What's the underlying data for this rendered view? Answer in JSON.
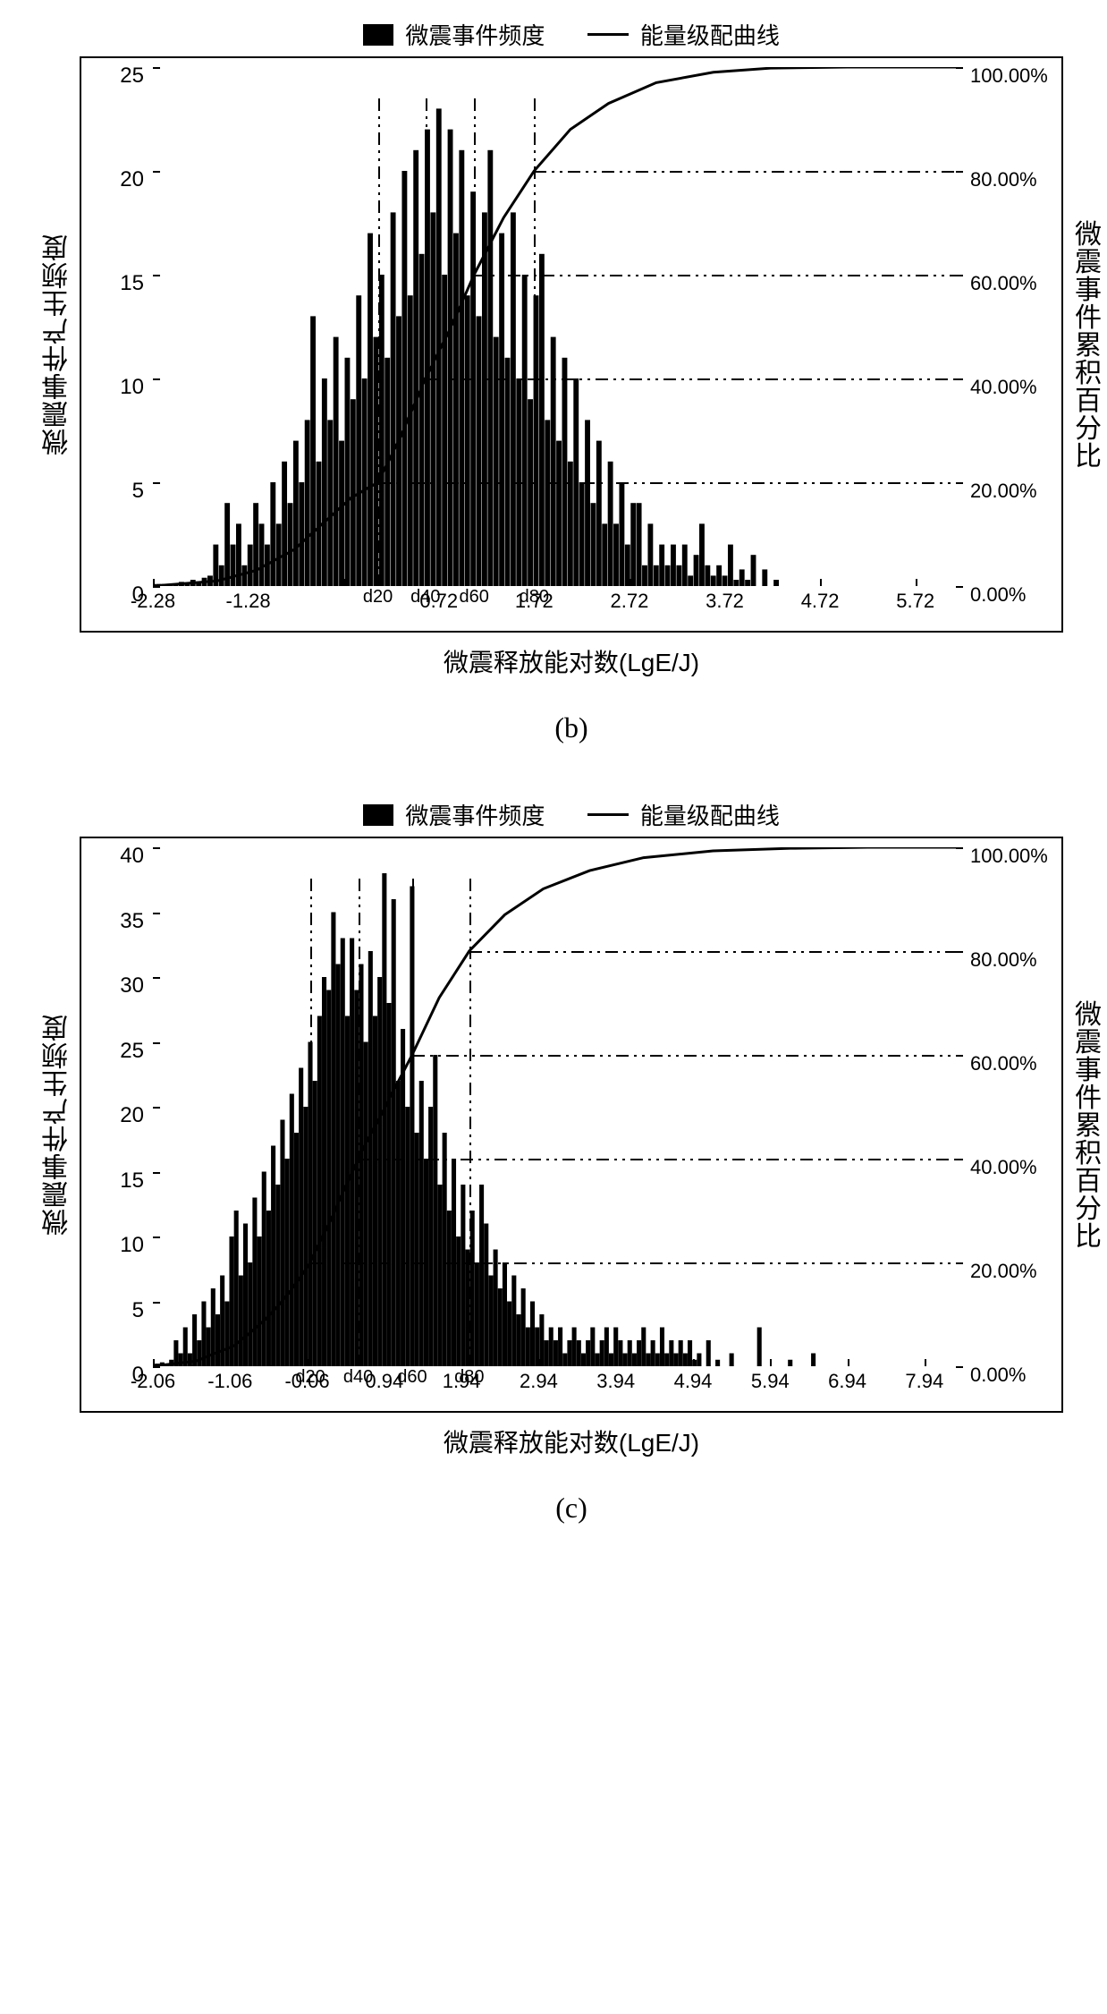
{
  "legend": {
    "bars": "微震事件频度",
    "line": "能量级配曲线"
  },
  "axis_labels": {
    "y_left": "微震事件产生频度",
    "y_right": "微震事件累积百分比",
    "x": "微震释放能对数(LgE/J)"
  },
  "chart_b": {
    "sub": "(b)",
    "x_range": [
      -2.28,
      6.22
    ],
    "x_ticks": [
      -2.28,
      -1.28,
      -0.28,
      0.72,
      1.72,
      2.72,
      3.72,
      4.72,
      5.72
    ],
    "x_tick_labels": [
      "-2.28",
      "-1.28",
      "",
      "0.72",
      "1.72",
      "2.72",
      "3.72",
      "4.72",
      "5.72"
    ],
    "y_left_max": 25,
    "y_left_ticks": [
      0,
      5,
      10,
      15,
      20,
      25
    ],
    "y_right_ticks_pct": [
      0,
      20,
      40,
      60,
      80,
      100
    ],
    "y_right_labels": [
      "0.00%",
      "20.00%",
      "40.00%",
      "60.00%",
      "80.00%",
      "100.00%"
    ],
    "h_refs_pct": [
      20,
      40,
      60,
      80
    ],
    "d_markers": [
      {
        "label": "d20",
        "x": 0.08
      },
      {
        "label": "d40",
        "x": 0.58
      },
      {
        "label": "d60",
        "x": 1.09
      },
      {
        "label": "d80",
        "x": 1.72
      }
    ],
    "v_ref_top_pct": [
      10,
      10,
      10,
      10
    ],
    "bars": [
      {
        "x": -2.28,
        "v": 0.1
      },
      {
        "x": -2.22,
        "v": 0.1
      },
      {
        "x": -2.16,
        "v": 0.1
      },
      {
        "x": -2.1,
        "v": 0.1
      },
      {
        "x": -2.04,
        "v": 0.1
      },
      {
        "x": -1.98,
        "v": 0.2
      },
      {
        "x": -1.92,
        "v": 0.1
      },
      {
        "x": -1.86,
        "v": 0.3
      },
      {
        "x": -1.8,
        "v": 0.2
      },
      {
        "x": -1.74,
        "v": 0.4
      },
      {
        "x": -1.68,
        "v": 0.5
      },
      {
        "x": -1.62,
        "v": 2
      },
      {
        "x": -1.56,
        "v": 1
      },
      {
        "x": -1.5,
        "v": 4
      },
      {
        "x": -1.44,
        "v": 2
      },
      {
        "x": -1.38,
        "v": 3
      },
      {
        "x": -1.32,
        "v": 1
      },
      {
        "x": -1.26,
        "v": 2
      },
      {
        "x": -1.2,
        "v": 4
      },
      {
        "x": -1.14,
        "v": 3
      },
      {
        "x": -1.08,
        "v": 2
      },
      {
        "x": -1.02,
        "v": 5
      },
      {
        "x": -0.96,
        "v": 3
      },
      {
        "x": -0.9,
        "v": 6
      },
      {
        "x": -0.84,
        "v": 4
      },
      {
        "x": -0.78,
        "v": 7
      },
      {
        "x": -0.72,
        "v": 5
      },
      {
        "x": -0.66,
        "v": 8
      },
      {
        "x": -0.6,
        "v": 13
      },
      {
        "x": -0.54,
        "v": 6
      },
      {
        "x": -0.48,
        "v": 10
      },
      {
        "x": -0.42,
        "v": 8
      },
      {
        "x": -0.36,
        "v": 12
      },
      {
        "x": -0.3,
        "v": 7
      },
      {
        "x": -0.24,
        "v": 11
      },
      {
        "x": -0.18,
        "v": 9
      },
      {
        "x": -0.12,
        "v": 14
      },
      {
        "x": -0.06,
        "v": 10
      },
      {
        "x": 0.0,
        "v": 17
      },
      {
        "x": 0.06,
        "v": 12
      },
      {
        "x": 0.12,
        "v": 15
      },
      {
        "x": 0.18,
        "v": 11
      },
      {
        "x": 0.24,
        "v": 18
      },
      {
        "x": 0.3,
        "v": 13
      },
      {
        "x": 0.36,
        "v": 20
      },
      {
        "x": 0.42,
        "v": 14
      },
      {
        "x": 0.48,
        "v": 21
      },
      {
        "x": 0.54,
        "v": 16
      },
      {
        "x": 0.6,
        "v": 22
      },
      {
        "x": 0.66,
        "v": 18
      },
      {
        "x": 0.72,
        "v": 23
      },
      {
        "x": 0.78,
        "v": 15
      },
      {
        "x": 0.84,
        "v": 22
      },
      {
        "x": 0.9,
        "v": 17
      },
      {
        "x": 0.96,
        "v": 21
      },
      {
        "x": 1.02,
        "v": 14
      },
      {
        "x": 1.08,
        "v": 19
      },
      {
        "x": 1.14,
        "v": 13
      },
      {
        "x": 1.2,
        "v": 18
      },
      {
        "x": 1.26,
        "v": 21
      },
      {
        "x": 1.32,
        "v": 12
      },
      {
        "x": 1.38,
        "v": 17
      },
      {
        "x": 1.44,
        "v": 11
      },
      {
        "x": 1.5,
        "v": 18
      },
      {
        "x": 1.56,
        "v": 10
      },
      {
        "x": 1.62,
        "v": 15
      },
      {
        "x": 1.68,
        "v": 9
      },
      {
        "x": 1.74,
        "v": 14
      },
      {
        "x": 1.8,
        "v": 16
      },
      {
        "x": 1.86,
        "v": 8
      },
      {
        "x": 1.92,
        "v": 12
      },
      {
        "x": 1.98,
        "v": 7
      },
      {
        "x": 2.04,
        "v": 11
      },
      {
        "x": 2.1,
        "v": 6
      },
      {
        "x": 2.16,
        "v": 10
      },
      {
        "x": 2.22,
        "v": 5
      },
      {
        "x": 2.28,
        "v": 8
      },
      {
        "x": 2.34,
        "v": 4
      },
      {
        "x": 2.4,
        "v": 7
      },
      {
        "x": 2.46,
        "v": 3
      },
      {
        "x": 2.52,
        "v": 6
      },
      {
        "x": 2.58,
        "v": 3
      },
      {
        "x": 2.64,
        "v": 5
      },
      {
        "x": 2.7,
        "v": 2
      },
      {
        "x": 2.76,
        "v": 4
      },
      {
        "x": 2.82,
        "v": 4
      },
      {
        "x": 2.88,
        "v": 1
      },
      {
        "x": 2.94,
        "v": 3
      },
      {
        "x": 3.0,
        "v": 1
      },
      {
        "x": 3.06,
        "v": 2
      },
      {
        "x": 3.12,
        "v": 1
      },
      {
        "x": 3.18,
        "v": 2
      },
      {
        "x": 3.24,
        "v": 1
      },
      {
        "x": 3.3,
        "v": 2
      },
      {
        "x": 3.36,
        "v": 0.5
      },
      {
        "x": 3.42,
        "v": 1.5
      },
      {
        "x": 3.48,
        "v": 3
      },
      {
        "x": 3.54,
        "v": 1
      },
      {
        "x": 3.6,
        "v": 0.5
      },
      {
        "x": 3.66,
        "v": 1
      },
      {
        "x": 3.72,
        "v": 0.5
      },
      {
        "x": 3.78,
        "v": 2
      },
      {
        "x": 3.84,
        "v": 0.3
      },
      {
        "x": 3.9,
        "v": 0.8
      },
      {
        "x": 3.96,
        "v": 0.3
      },
      {
        "x": 4.02,
        "v": 1.5
      },
      {
        "x": 4.14,
        "v": 0.8
      },
      {
        "x": 4.26,
        "v": 0.3
      }
    ],
    "curve_pts": [
      {
        "x": -2.28,
        "p": 0
      },
      {
        "x": -1.6,
        "p": 1
      },
      {
        "x": -1.2,
        "p": 3
      },
      {
        "x": -0.8,
        "p": 7
      },
      {
        "x": -0.5,
        "p": 12
      },
      {
        "x": -0.2,
        "p": 17
      },
      {
        "x": 0.08,
        "p": 20
      },
      {
        "x": 0.3,
        "p": 28
      },
      {
        "x": 0.58,
        "p": 40
      },
      {
        "x": 0.85,
        "p": 50
      },
      {
        "x": 1.09,
        "p": 60
      },
      {
        "x": 1.4,
        "p": 71
      },
      {
        "x": 1.72,
        "p": 80
      },
      {
        "x": 2.1,
        "p": 88
      },
      {
        "x": 2.5,
        "p": 93
      },
      {
        "x": 3.0,
        "p": 97
      },
      {
        "x": 3.6,
        "p": 99
      },
      {
        "x": 4.2,
        "p": 99.8
      },
      {
        "x": 5.0,
        "p": 100
      },
      {
        "x": 6.22,
        "p": 100
      }
    ]
  },
  "chart_c": {
    "sub": "(c)",
    "x_range": [
      -2.06,
      8.44
    ],
    "x_ticks": [
      -2.06,
      -1.06,
      -0.06,
      0.94,
      1.94,
      2.94,
      3.94,
      4.94,
      5.94,
      6.94,
      7.94
    ],
    "x_tick_labels": [
      "-2.06",
      "-1.06",
      "-0.06",
      "0.94",
      "1.94",
      "2.94",
      "3.94",
      "4.94",
      "5.94",
      "6.94",
      "7.94"
    ],
    "y_left_max": 40,
    "y_left_ticks": [
      0,
      5,
      10,
      15,
      20,
      25,
      30,
      35,
      40
    ],
    "y_right_ticks_pct": [
      0,
      20,
      40,
      60,
      80,
      100
    ],
    "y_right_labels": [
      "0.00%",
      "20.00%",
      "40.00%",
      "60.00%",
      "80.00%",
      "100.00%"
    ],
    "h_refs_pct": [
      20,
      40,
      60,
      80
    ],
    "d_markers": [
      {
        "label": "d20",
        "x": -0.02
      },
      {
        "label": "d40",
        "x": 0.6
      },
      {
        "label": "d60",
        "x": 1.3
      },
      {
        "label": "d80",
        "x": 2.04
      }
    ],
    "bars": [
      {
        "x": -2.06,
        "v": 0.2
      },
      {
        "x": -2.0,
        "v": 0.2
      },
      {
        "x": -1.94,
        "v": 0.3
      },
      {
        "x": -1.88,
        "v": 0.2
      },
      {
        "x": -1.82,
        "v": 0.5
      },
      {
        "x": -1.76,
        "v": 2
      },
      {
        "x": -1.7,
        "v": 1
      },
      {
        "x": -1.64,
        "v": 3
      },
      {
        "x": -1.58,
        "v": 1
      },
      {
        "x": -1.52,
        "v": 4
      },
      {
        "x": -1.46,
        "v": 2
      },
      {
        "x": -1.4,
        "v": 5
      },
      {
        "x": -1.34,
        "v": 3
      },
      {
        "x": -1.28,
        "v": 6
      },
      {
        "x": -1.22,
        "v": 4
      },
      {
        "x": -1.16,
        "v": 7
      },
      {
        "x": -1.1,
        "v": 5
      },
      {
        "x": -1.04,
        "v": 10
      },
      {
        "x": -0.98,
        "v": 12
      },
      {
        "x": -0.92,
        "v": 7
      },
      {
        "x": -0.86,
        "v": 11
      },
      {
        "x": -0.8,
        "v": 8
      },
      {
        "x": -0.74,
        "v": 13
      },
      {
        "x": -0.68,
        "v": 10
      },
      {
        "x": -0.62,
        "v": 15
      },
      {
        "x": -0.56,
        "v": 12
      },
      {
        "x": -0.5,
        "v": 17
      },
      {
        "x": -0.44,
        "v": 14
      },
      {
        "x": -0.38,
        "v": 19
      },
      {
        "x": -0.32,
        "v": 16
      },
      {
        "x": -0.26,
        "v": 21
      },
      {
        "x": -0.2,
        "v": 18
      },
      {
        "x": -0.14,
        "v": 23
      },
      {
        "x": -0.08,
        "v": 20
      },
      {
        "x": -0.02,
        "v": 25
      },
      {
        "x": 0.04,
        "v": 22
      },
      {
        "x": 0.1,
        "v": 27
      },
      {
        "x": 0.16,
        "v": 30
      },
      {
        "x": 0.22,
        "v": 29
      },
      {
        "x": 0.28,
        "v": 35
      },
      {
        "x": 0.34,
        "v": 31
      },
      {
        "x": 0.4,
        "v": 33
      },
      {
        "x": 0.46,
        "v": 27
      },
      {
        "x": 0.52,
        "v": 33
      },
      {
        "x": 0.58,
        "v": 29
      },
      {
        "x": 0.64,
        "v": 31
      },
      {
        "x": 0.7,
        "v": 25
      },
      {
        "x": 0.76,
        "v": 32
      },
      {
        "x": 0.82,
        "v": 27
      },
      {
        "x": 0.88,
        "v": 30
      },
      {
        "x": 0.94,
        "v": 38
      },
      {
        "x": 1.0,
        "v": 28
      },
      {
        "x": 1.06,
        "v": 36
      },
      {
        "x": 1.12,
        "v": 22
      },
      {
        "x": 1.18,
        "v": 26
      },
      {
        "x": 1.24,
        "v": 20
      },
      {
        "x": 1.3,
        "v": 37
      },
      {
        "x": 1.36,
        "v": 18
      },
      {
        "x": 1.42,
        "v": 22
      },
      {
        "x": 1.48,
        "v": 16
      },
      {
        "x": 1.54,
        "v": 20
      },
      {
        "x": 1.6,
        "v": 24
      },
      {
        "x": 1.66,
        "v": 14
      },
      {
        "x": 1.72,
        "v": 18
      },
      {
        "x": 1.78,
        "v": 12
      },
      {
        "x": 1.84,
        "v": 16
      },
      {
        "x": 1.9,
        "v": 10
      },
      {
        "x": 1.96,
        "v": 14
      },
      {
        "x": 2.02,
        "v": 9
      },
      {
        "x": 2.08,
        "v": 12
      },
      {
        "x": 2.14,
        "v": 8
      },
      {
        "x": 2.2,
        "v": 14
      },
      {
        "x": 2.26,
        "v": 11
      },
      {
        "x": 2.32,
        "v": 7
      },
      {
        "x": 2.38,
        "v": 9
      },
      {
        "x": 2.44,
        "v": 6
      },
      {
        "x": 2.5,
        "v": 8
      },
      {
        "x": 2.56,
        "v": 5
      },
      {
        "x": 2.62,
        "v": 7
      },
      {
        "x": 2.68,
        "v": 4
      },
      {
        "x": 2.74,
        "v": 6
      },
      {
        "x": 2.8,
        "v": 3
      },
      {
        "x": 2.86,
        "v": 5
      },
      {
        "x": 2.92,
        "v": 3
      },
      {
        "x": 2.98,
        "v": 4
      },
      {
        "x": 3.04,
        "v": 2
      },
      {
        "x": 3.1,
        "v": 3
      },
      {
        "x": 3.16,
        "v": 2
      },
      {
        "x": 3.22,
        "v": 3
      },
      {
        "x": 3.28,
        "v": 1
      },
      {
        "x": 3.34,
        "v": 2
      },
      {
        "x": 3.4,
        "v": 3
      },
      {
        "x": 3.46,
        "v": 2
      },
      {
        "x": 3.52,
        "v": 1
      },
      {
        "x": 3.58,
        "v": 2
      },
      {
        "x": 3.64,
        "v": 3
      },
      {
        "x": 3.7,
        "v": 1
      },
      {
        "x": 3.76,
        "v": 2
      },
      {
        "x": 3.82,
        "v": 3
      },
      {
        "x": 3.88,
        "v": 1
      },
      {
        "x": 3.94,
        "v": 3
      },
      {
        "x": 4.0,
        "v": 2
      },
      {
        "x": 4.06,
        "v": 1
      },
      {
        "x": 4.12,
        "v": 2
      },
      {
        "x": 4.18,
        "v": 1
      },
      {
        "x": 4.24,
        "v": 2
      },
      {
        "x": 4.3,
        "v": 3
      },
      {
        "x": 4.36,
        "v": 1
      },
      {
        "x": 4.42,
        "v": 2
      },
      {
        "x": 4.48,
        "v": 1
      },
      {
        "x": 4.54,
        "v": 3
      },
      {
        "x": 4.6,
        "v": 1
      },
      {
        "x": 4.66,
        "v": 2
      },
      {
        "x": 4.72,
        "v": 1
      },
      {
        "x": 4.78,
        "v": 2
      },
      {
        "x": 4.84,
        "v": 1
      },
      {
        "x": 4.9,
        "v": 2
      },
      {
        "x": 4.96,
        "v": 0.5
      },
      {
        "x": 5.02,
        "v": 1
      },
      {
        "x": 5.14,
        "v": 2
      },
      {
        "x": 5.26,
        "v": 0.5
      },
      {
        "x": 5.44,
        "v": 1
      },
      {
        "x": 5.8,
        "v": 3
      },
      {
        "x": 6.2,
        "v": 0.5
      },
      {
        "x": 6.5,
        "v": 1
      }
    ],
    "curve_pts": [
      {
        "x": -2.06,
        "p": 0
      },
      {
        "x": -1.5,
        "p": 1
      },
      {
        "x": -1.0,
        "p": 4
      },
      {
        "x": -0.6,
        "p": 9
      },
      {
        "x": -0.3,
        "p": 14
      },
      {
        "x": -0.02,
        "p": 20
      },
      {
        "x": 0.3,
        "p": 30
      },
      {
        "x": 0.6,
        "p": 40
      },
      {
        "x": 0.95,
        "p": 50
      },
      {
        "x": 1.3,
        "p": 60
      },
      {
        "x": 1.65,
        "p": 71
      },
      {
        "x": 2.04,
        "p": 80
      },
      {
        "x": 2.5,
        "p": 87
      },
      {
        "x": 3.0,
        "p": 92
      },
      {
        "x": 3.6,
        "p": 95.5
      },
      {
        "x": 4.3,
        "p": 98
      },
      {
        "x": 5.2,
        "p": 99.3
      },
      {
        "x": 6.2,
        "p": 99.8
      },
      {
        "x": 7.2,
        "p": 100
      },
      {
        "x": 8.44,
        "p": 100
      }
    ]
  },
  "colors": {
    "bar": "#000000",
    "line": "#000000",
    "bg": "#ffffff"
  }
}
